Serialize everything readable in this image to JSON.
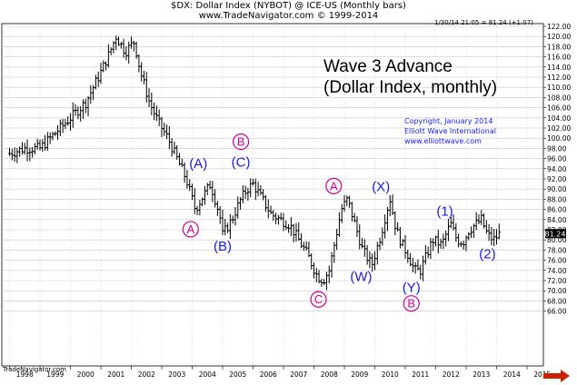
{
  "header": {
    "line1": "$DX:  Dollar Index (NYBOT) @ ICE-US  (Monthly bars)",
    "line2": "www.TradeNavigator.com © 1999-2014"
  },
  "quote_line": "1/30/14 21:05 = 81.24 (+1.07)",
  "price_tag": "81.24",
  "brand": "TradeNavigator.com",
  "chart_data": {
    "type": "bar",
    "style": "monthly OHLC bars",
    "title_lines": [
      "Wave 3 Advance",
      "(Dollar Index, monthly)"
    ],
    "copyright_lines": [
      "Copyright, January 2014",
      "Elliott Wave International",
      "www.elliottwave.com"
    ],
    "ylim": [
      64,
      123
    ],
    "y_ticks": [
      66,
      68,
      70,
      72,
      74,
      76,
      78,
      80,
      82,
      84,
      86,
      88,
      90,
      92,
      94,
      96,
      98,
      100,
      102,
      104,
      106,
      108,
      110,
      112,
      114,
      116,
      118,
      120,
      122
    ],
    "y_axis_side": "right",
    "xlim": [
      1998.0,
      2015.6
    ],
    "x_ticks": [
      "1998",
      "1999",
      "2000",
      "2001",
      "2002",
      "2003",
      "2004",
      "2005",
      "2006",
      "2007",
      "2008",
      "2009",
      "2010",
      "2011",
      "2012",
      "2013",
      "2014",
      "2015"
    ],
    "grid": true,
    "last_close": 81.24,
    "close_path": [
      [
        1998.0,
        97
      ],
      [
        1998.5,
        98
      ],
      [
        1999.0,
        98
      ],
      [
        1999.5,
        101
      ],
      [
        2000.0,
        104
      ],
      [
        2000.5,
        107
      ],
      [
        2001.0,
        113
      ],
      [
        2001.3,
        117
      ],
      [
        2001.5,
        120
      ],
      [
        2001.8,
        117
      ],
      [
        2002.1,
        119
      ],
      [
        2002.3,
        113
      ],
      [
        2002.6,
        107
      ],
      [
        2002.9,
        103
      ],
      [
        2003.2,
        100
      ],
      [
        2003.5,
        96
      ],
      [
        2003.8,
        92
      ],
      [
        2004.1,
        86
      ],
      [
        2004.3,
        88
      ],
      [
        2004.6,
        91
      ],
      [
        2004.9,
        85
      ],
      [
        2005.0,
        81
      ],
      [
        2005.3,
        84
      ],
      [
        2005.6,
        88
      ],
      [
        2005.8,
        90
      ],
      [
        2006.0,
        91
      ],
      [
        2006.3,
        88
      ],
      [
        2006.6,
        85
      ],
      [
        2006.9,
        84
      ],
      [
        2007.2,
        83
      ],
      [
        2007.5,
        80
      ],
      [
        2007.8,
        77
      ],
      [
        2008.1,
        73
      ],
      [
        2008.3,
        72
      ],
      [
        2008.5,
        74
      ],
      [
        2008.7,
        80
      ],
      [
        2008.9,
        86
      ],
      [
        2009.1,
        88
      ],
      [
        2009.3,
        84
      ],
      [
        2009.6,
        78
      ],
      [
        2009.9,
        75
      ],
      [
        2010.2,
        81
      ],
      [
        2010.4,
        86
      ],
      [
        2010.5,
        88
      ],
      [
        2010.7,
        82
      ],
      [
        2010.9,
        79
      ],
      [
        2011.1,
        77
      ],
      [
        2011.3,
        74
      ],
      [
        2011.5,
        74
      ],
      [
        2011.7,
        77
      ],
      [
        2011.9,
        80
      ],
      [
        2012.2,
        79
      ],
      [
        2012.4,
        82
      ],
      [
        2012.5,
        83
      ],
      [
        2012.7,
        80
      ],
      [
        2012.9,
        79.5
      ],
      [
        2013.1,
        82
      ],
      [
        2013.3,
        83
      ],
      [
        2013.5,
        84
      ],
      [
        2013.7,
        81
      ],
      [
        2013.9,
        80
      ],
      [
        2014.1,
        81.24
      ]
    ],
    "annotations": [
      {
        "label": "A",
        "circled": true,
        "x": 2003.95,
        "y": 82.1
      },
      {
        "label": "(A)",
        "circled": false,
        "x": 2004.2,
        "y": 95.0
      },
      {
        "label": "(B)",
        "circled": false,
        "x": 2005.0,
        "y": 78.8
      },
      {
        "label": "B",
        "circled": true,
        "x": 2005.6,
        "y": 99.3
      },
      {
        "label": "(C)",
        "circled": false,
        "x": 2005.6,
        "y": 95.3
      },
      {
        "label": "C",
        "circled": true,
        "x": 2008.15,
        "y": 68.3
      },
      {
        "label": "A",
        "circled": true,
        "x": 2008.65,
        "y": 90.6
      },
      {
        "label": "(W)",
        "circled": false,
        "x": 2009.55,
        "y": 72.8
      },
      {
        "label": "(X)",
        "circled": false,
        "x": 2010.2,
        "y": 90.5
      },
      {
        "label": "(Y)",
        "circled": false,
        "x": 2011.2,
        "y": 70.7
      },
      {
        "label": "B",
        "circled": true,
        "x": 2011.2,
        "y": 67.5
      },
      {
        "label": "(1)",
        "circled": false,
        "x": 2012.3,
        "y": 85.7
      },
      {
        "label": "(2)",
        "circled": false,
        "x": 2013.7,
        "y": 77.3
      }
    ]
  },
  "colors": {
    "bars": "#000000",
    "grid": "#c8c8c8",
    "wave_blue": "#1a1ae6",
    "wave_magenta": "#cc0099",
    "copyright": "#1a1aff",
    "price_tag_bg": "#000000",
    "price_tag_text": "#ffffff",
    "scroll_arrow": "#cc2200"
  }
}
